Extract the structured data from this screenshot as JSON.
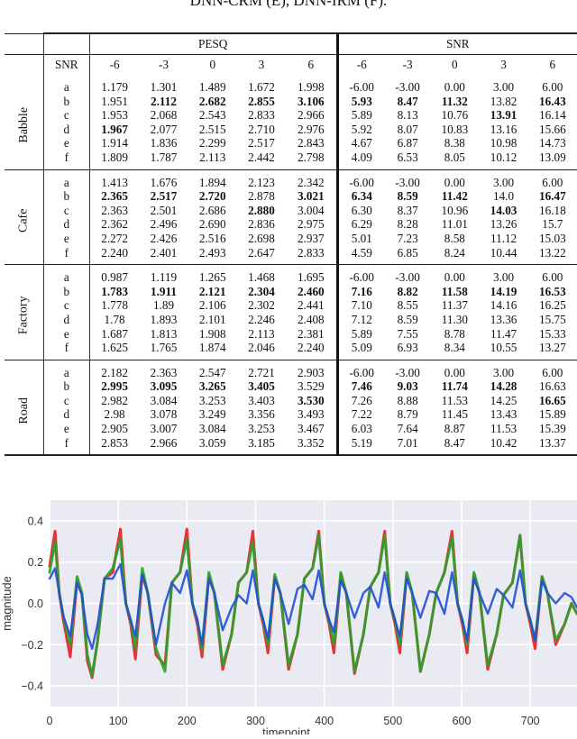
{
  "caption": "DNN-CRM (E), DNN-IRM (F).",
  "table": {
    "group_headers": {
      "pesq": "PESQ",
      "snr": "SNR"
    },
    "row_header_label": "SNR",
    "snr_levels": [
      "-6",
      "-3",
      "0",
      "3",
      "6"
    ],
    "sections": [
      {
        "noise": "Babble",
        "rows": [
          {
            "label": "a",
            "pesq": [
              "1.179",
              "1.301",
              "1.489",
              "1.672",
              "1.998"
            ],
            "snr": [
              "-6.00",
              "-3.00",
              "0.00",
              "3.00",
              "6.00"
            ],
            "bold_pesq": [],
            "bold_snr": []
          },
          {
            "label": "b",
            "pesq": [
              "1.951",
              "2.112",
              "2.682",
              "2.855",
              "3.106"
            ],
            "snr": [
              "5.93",
              "8.47",
              "11.32",
              "13.82",
              "16.43"
            ],
            "bold_pesq": [
              1,
              2,
              3,
              4
            ],
            "bold_snr": [
              0,
              1,
              2,
              4
            ]
          },
          {
            "label": "c",
            "pesq": [
              "1.953",
              "2.068",
              "2.543",
              "2.833",
              "2.966"
            ],
            "snr": [
              "5.89",
              "8.13",
              "10.76",
              "13.91",
              "16.14"
            ],
            "bold_pesq": [],
            "bold_snr": [
              3
            ]
          },
          {
            "label": "d",
            "pesq": [
              "1.967",
              "2.077",
              "2.515",
              "2.710",
              "2.976"
            ],
            "snr": [
              "5.92",
              "8.07",
              "10.83",
              "13.16",
              "15.66"
            ],
            "bold_pesq": [
              0
            ],
            "bold_snr": []
          },
          {
            "label": "e",
            "pesq": [
              "1.914",
              "1.836",
              "2.299",
              "2.517",
              "2.843"
            ],
            "snr": [
              "4.67",
              "6.87",
              "8.38",
              "10.98",
              "14.73"
            ],
            "bold_pesq": [],
            "bold_snr": []
          },
          {
            "label": "f",
            "pesq": [
              "1.809",
              "1.787",
              "2.113",
              "2.442",
              "2.798"
            ],
            "snr": [
              "4.09",
              "6.53",
              "8.05",
              "10.12",
              "13.09"
            ],
            "bold_pesq": [],
            "bold_snr": []
          }
        ]
      },
      {
        "noise": "Cafe",
        "rows": [
          {
            "label": "a",
            "pesq": [
              "1.413",
              "1.676",
              "1.894",
              "2.123",
              "2.342"
            ],
            "snr": [
              "-6.00",
              "-3.00",
              "0.00",
              "3.00",
              "6.00"
            ],
            "bold_pesq": [],
            "bold_snr": []
          },
          {
            "label": "b",
            "pesq": [
              "2.365",
              "2.517",
              "2.720",
              "2.878",
              "3.021"
            ],
            "snr": [
              "6.34",
              "8.59",
              "11.42",
              "14.0",
              "16.47"
            ],
            "bold_pesq": [
              0,
              1,
              2,
              4
            ],
            "bold_snr": [
              0,
              1,
              2,
              4
            ]
          },
          {
            "label": "c",
            "pesq": [
              "2.363",
              "2.501",
              "2.686",
              "2.880",
              "3.004"
            ],
            "snr": [
              "6.30",
              "8.37",
              "10.96",
              "14.03",
              "16.18"
            ],
            "bold_pesq": [
              3
            ],
            "bold_snr": [
              3
            ]
          },
          {
            "label": "d",
            "pesq": [
              "2.362",
              "2.496",
              "2.690",
              "2.836",
              "2.975"
            ],
            "snr": [
              "6.29",
              "8.28",
              "11.01",
              "13.26",
              "15.7"
            ],
            "bold_pesq": [],
            "bold_snr": []
          },
          {
            "label": "e",
            "pesq": [
              "2.272",
              "2.426",
              "2.516",
              "2.698",
              "2.937"
            ],
            "snr": [
              "5.01",
              "7.23",
              "8.58",
              "11.12",
              "15.03"
            ],
            "bold_pesq": [],
            "bold_snr": []
          },
          {
            "label": "f",
            "pesq": [
              "2.240",
              "2.401",
              "2.493",
              "2.647",
              "2.833"
            ],
            "snr": [
              "4.59",
              "6.85",
              "8.24",
              "10.44",
              "13.22"
            ],
            "bold_pesq": [],
            "bold_snr": []
          }
        ]
      },
      {
        "noise": "Factory",
        "rows": [
          {
            "label": "a",
            "pesq": [
              "0.987",
              "1.119",
              "1.265",
              "1.468",
              "1.695"
            ],
            "snr": [
              "-6.00",
              "-3.00",
              "0.00",
              "3.00",
              "6.00"
            ],
            "bold_pesq": [],
            "bold_snr": []
          },
          {
            "label": "b",
            "pesq": [
              "1.783",
              "1.911",
              "2.121",
              "2.304",
              "2.460"
            ],
            "snr": [
              "7.16",
              "8.82",
              "11.58",
              "14.19",
              "16.53"
            ],
            "bold_pesq": [
              0,
              1,
              2,
              3,
              4
            ],
            "bold_snr": [
              0,
              1,
              2,
              3,
              4
            ]
          },
          {
            "label": "c",
            "pesq": [
              "1.778",
              "1.89",
              "2.106",
              "2.302",
              "2.441"
            ],
            "snr": [
              "7.10",
              "8.55",
              "11.37",
              "14.16",
              "16.25"
            ],
            "bold_pesq": [],
            "bold_snr": []
          },
          {
            "label": "d",
            "pesq": [
              "1.78",
              "1.893",
              "2.101",
              "2.246",
              "2.408"
            ],
            "snr": [
              "7.12",
              "8.59",
              "11.30",
              "13.36",
              "15.75"
            ],
            "bold_pesq": [],
            "bold_snr": []
          },
          {
            "label": "e",
            "pesq": [
              "1.687",
              "1.813",
              "1.908",
              "2.113",
              "2.381"
            ],
            "snr": [
              "5.89",
              "7.55",
              "8.78",
              "11.47",
              "15.33"
            ],
            "bold_pesq": [],
            "bold_snr": []
          },
          {
            "label": "f",
            "pesq": [
              "1.625",
              "1.765",
              "1.874",
              "2.046",
              "2.240"
            ],
            "snr": [
              "5.09",
              "6.93",
              "8.34",
              "10.55",
              "13.27"
            ],
            "bold_pesq": [],
            "bold_snr": []
          }
        ]
      },
      {
        "noise": "Road",
        "rows": [
          {
            "label": "a",
            "pesq": [
              "2.182",
              "2.363",
              "2.547",
              "2.721",
              "2.903"
            ],
            "snr": [
              "-6.00",
              "-3.00",
              "0.00",
              "3.00",
              "6.00"
            ],
            "bold_pesq": [],
            "bold_snr": []
          },
          {
            "label": "b",
            "pesq": [
              "2.995",
              "3.095",
              "3.265",
              "3.405",
              "3.529"
            ],
            "snr": [
              "7.46",
              "9.03",
              "11.74",
              "14.28",
              "16.63"
            ],
            "bold_pesq": [
              0,
              1,
              2,
              3
            ],
            "bold_snr": [
              0,
              1,
              2,
              3
            ]
          },
          {
            "label": "c",
            "pesq": [
              "2.982",
              "3.084",
              "3.253",
              "3.403",
              "3.530"
            ],
            "snr": [
              "7.26",
              "8.88",
              "11.53",
              "14.25",
              "16.65"
            ],
            "bold_pesq": [
              4
            ],
            "bold_snr": [
              4
            ]
          },
          {
            "label": "d",
            "pesq": [
              "2.98",
              "3.078",
              "3.249",
              "3.356",
              "3.493"
            ],
            "snr": [
              "7.22",
              "8.79",
              "11.45",
              "13.43",
              "15.89"
            ],
            "bold_pesq": [],
            "bold_snr": []
          },
          {
            "label": "e",
            "pesq": [
              "2.905",
              "3.007",
              "3.084",
              "3.253",
              "3.467"
            ],
            "snr": [
              "6.03",
              "7.64",
              "8.87",
              "11.53",
              "15.39"
            ],
            "bold_pesq": [],
            "bold_snr": []
          },
          {
            "label": "f",
            "pesq": [
              "2.853",
              "2.966",
              "3.059",
              "3.185",
              "3.352"
            ],
            "snr": [
              "5.19",
              "7.01",
              "8.47",
              "10.42",
              "13.37"
            ],
            "bold_pesq": [],
            "bold_snr": []
          }
        ]
      }
    ]
  },
  "chart_data": {
    "type": "line",
    "title": "",
    "xlabel": "timepoint",
    "ylabel": "magnitude",
    "xlim": [
      0,
      768
    ],
    "ylim": [
      -0.5,
      0.5
    ],
    "xticks": [
      0,
      100,
      200,
      300,
      400,
      500,
      600,
      700
    ],
    "yticks": [
      0.4,
      0.2,
      0.0,
      -0.2,
      -0.4
    ],
    "ytick_labels": [
      "0.4",
      "0.2",
      "0.0",
      "−0.2",
      "−0.4"
    ],
    "grid": true,
    "legend": null,
    "background": "#eaeaf2",
    "series": [
      {
        "name": "red",
        "color": "#e8282b",
        "x": [
          0,
          8,
          14,
          20,
          30,
          40,
          47,
          55,
          62,
          70,
          80,
          92,
          103,
          111,
          118,
          125,
          135,
          143,
          155,
          168,
          178,
          190,
          200,
          208,
          215,
          222,
          232,
          240,
          252,
          265,
          275,
          287,
          296,
          304,
          311,
          318,
          328,
          336,
          348,
          361,
          371,
          383,
          392,
          400,
          407,
          414,
          424,
          432,
          444,
          457,
          467,
          479,
          488,
          496,
          503,
          510,
          520,
          528,
          540,
          553,
          563,
          575,
          586,
          594,
          601,
          608,
          618,
          626,
          638,
          651,
          661,
          674,
          685,
          693,
          700,
          707,
          717,
          725,
          737,
          750,
          760,
          768
        ],
        "y": [
          0.18,
          0.35,
          0.05,
          -0.08,
          -0.26,
          0.11,
          0.05,
          -0.28,
          -0.36,
          -0.18,
          0.12,
          0.15,
          0.36,
          0.0,
          -0.1,
          -0.27,
          0.14,
          0.05,
          -0.25,
          -0.3,
          0.1,
          0.15,
          0.36,
          0.0,
          -0.1,
          -0.26,
          0.13,
          0.05,
          -0.32,
          -0.15,
          0.1,
          0.15,
          0.35,
          0.0,
          -0.1,
          -0.24,
          0.13,
          0.05,
          -0.32,
          -0.15,
          0.12,
          0.17,
          0.35,
          0.0,
          -0.1,
          -0.24,
          0.14,
          0.05,
          -0.34,
          -0.15,
          0.08,
          0.15,
          0.35,
          0.0,
          -0.1,
          -0.24,
          0.14,
          0.05,
          -0.33,
          -0.15,
          0.05,
          0.15,
          0.35,
          0.0,
          -0.1,
          -0.24,
          0.14,
          0.05,
          -0.32,
          -0.15,
          0.04,
          0.1,
          0.33,
          0.0,
          -0.1,
          -0.22,
          0.13,
          0.05,
          -0.2,
          -0.1,
          0.0,
          -0.05
        ]
      },
      {
        "name": "green",
        "color": "#2ca02c",
        "x": [
          0,
          8,
          14,
          20,
          30,
          40,
          47,
          55,
          62,
          70,
          80,
          92,
          103,
          111,
          118,
          125,
          135,
          143,
          155,
          168,
          178,
          190,
          200,
          208,
          215,
          222,
          232,
          240,
          252,
          265,
          275,
          287,
          296,
          304,
          311,
          318,
          328,
          336,
          348,
          361,
          371,
          383,
          392,
          400,
          407,
          414,
          424,
          432,
          444,
          457,
          467,
          479,
          488,
          496,
          503,
          510,
          520,
          528,
          540,
          553,
          563,
          575,
          586,
          594,
          601,
          608,
          618,
          626,
          638,
          651,
          661,
          674,
          685,
          693,
          700,
          707,
          717,
          725,
          737,
          750,
          760,
          768
        ],
        "y": [
          0.15,
          0.3,
          0.05,
          -0.06,
          -0.2,
          0.13,
          0.05,
          -0.25,
          -0.35,
          -0.18,
          0.12,
          0.17,
          0.31,
          0.0,
          -0.08,
          -0.22,
          0.17,
          0.05,
          -0.22,
          -0.33,
          0.1,
          0.15,
          0.31,
          0.0,
          -0.08,
          -0.22,
          0.15,
          0.05,
          -0.3,
          -0.15,
          0.1,
          0.15,
          0.3,
          0.0,
          -0.08,
          -0.2,
          0.14,
          0.05,
          -0.3,
          -0.15,
          0.12,
          0.17,
          0.33,
          0.0,
          -0.08,
          -0.2,
          0.15,
          0.05,
          -0.33,
          -0.15,
          0.08,
          0.15,
          0.33,
          0.0,
          -0.08,
          -0.2,
          0.15,
          0.05,
          -0.33,
          -0.15,
          0.05,
          0.15,
          0.32,
          0.0,
          -0.08,
          -0.2,
          0.15,
          0.05,
          -0.3,
          -0.15,
          0.04,
          0.1,
          0.33,
          0.0,
          -0.08,
          -0.18,
          0.13,
          0.05,
          -0.18,
          -0.1,
          0.0,
          -0.05
        ]
      },
      {
        "name": "blue",
        "color": "#1f4fd8",
        "x": [
          0,
          8,
          14,
          20,
          30,
          40,
          47,
          55,
          62,
          70,
          80,
          92,
          103,
          111,
          118,
          125,
          135,
          143,
          155,
          168,
          178,
          190,
          200,
          208,
          215,
          222,
          232,
          240,
          252,
          265,
          275,
          287,
          296,
          304,
          311,
          318,
          328,
          336,
          348,
          361,
          371,
          383,
          392,
          400,
          407,
          414,
          424,
          432,
          444,
          457,
          467,
          479,
          488,
          496,
          503,
          510,
          520,
          528,
          540,
          553,
          563,
          575,
          586,
          594,
          601,
          608,
          618,
          626,
          638,
          651,
          661,
          674,
          685,
          693,
          700,
          707,
          717,
          725,
          737,
          750,
          760,
          768
        ],
        "y": [
          0.12,
          0.17,
          0.05,
          -0.06,
          -0.16,
          0.1,
          0.04,
          -0.15,
          -0.22,
          -0.1,
          0.12,
          0.12,
          0.19,
          0.0,
          -0.08,
          -0.16,
          0.14,
          0.05,
          -0.2,
          0.0,
          0.1,
          0.05,
          0.16,
          0.0,
          -0.08,
          -0.2,
          0.12,
          0.05,
          -0.13,
          -0.02,
          0.04,
          0.0,
          0.16,
          0.0,
          -0.08,
          -0.17,
          0.12,
          0.05,
          -0.1,
          0.07,
          0.09,
          0.02,
          0.16,
          0.0,
          -0.08,
          -0.14,
          0.11,
          0.05,
          -0.07,
          0.05,
          0.08,
          -0.02,
          0.15,
          0.0,
          -0.08,
          -0.16,
          0.12,
          0.05,
          -0.07,
          0.06,
          0.05,
          -0.05,
          0.15,
          0.0,
          -0.08,
          -0.18,
          0.12,
          0.05,
          -0.05,
          0.07,
          0.04,
          -0.02,
          0.16,
          0.0,
          -0.08,
          -0.18,
          0.11,
          0.05,
          0.0,
          0.05,
          0.03,
          -0.02
        ]
      }
    ]
  }
}
